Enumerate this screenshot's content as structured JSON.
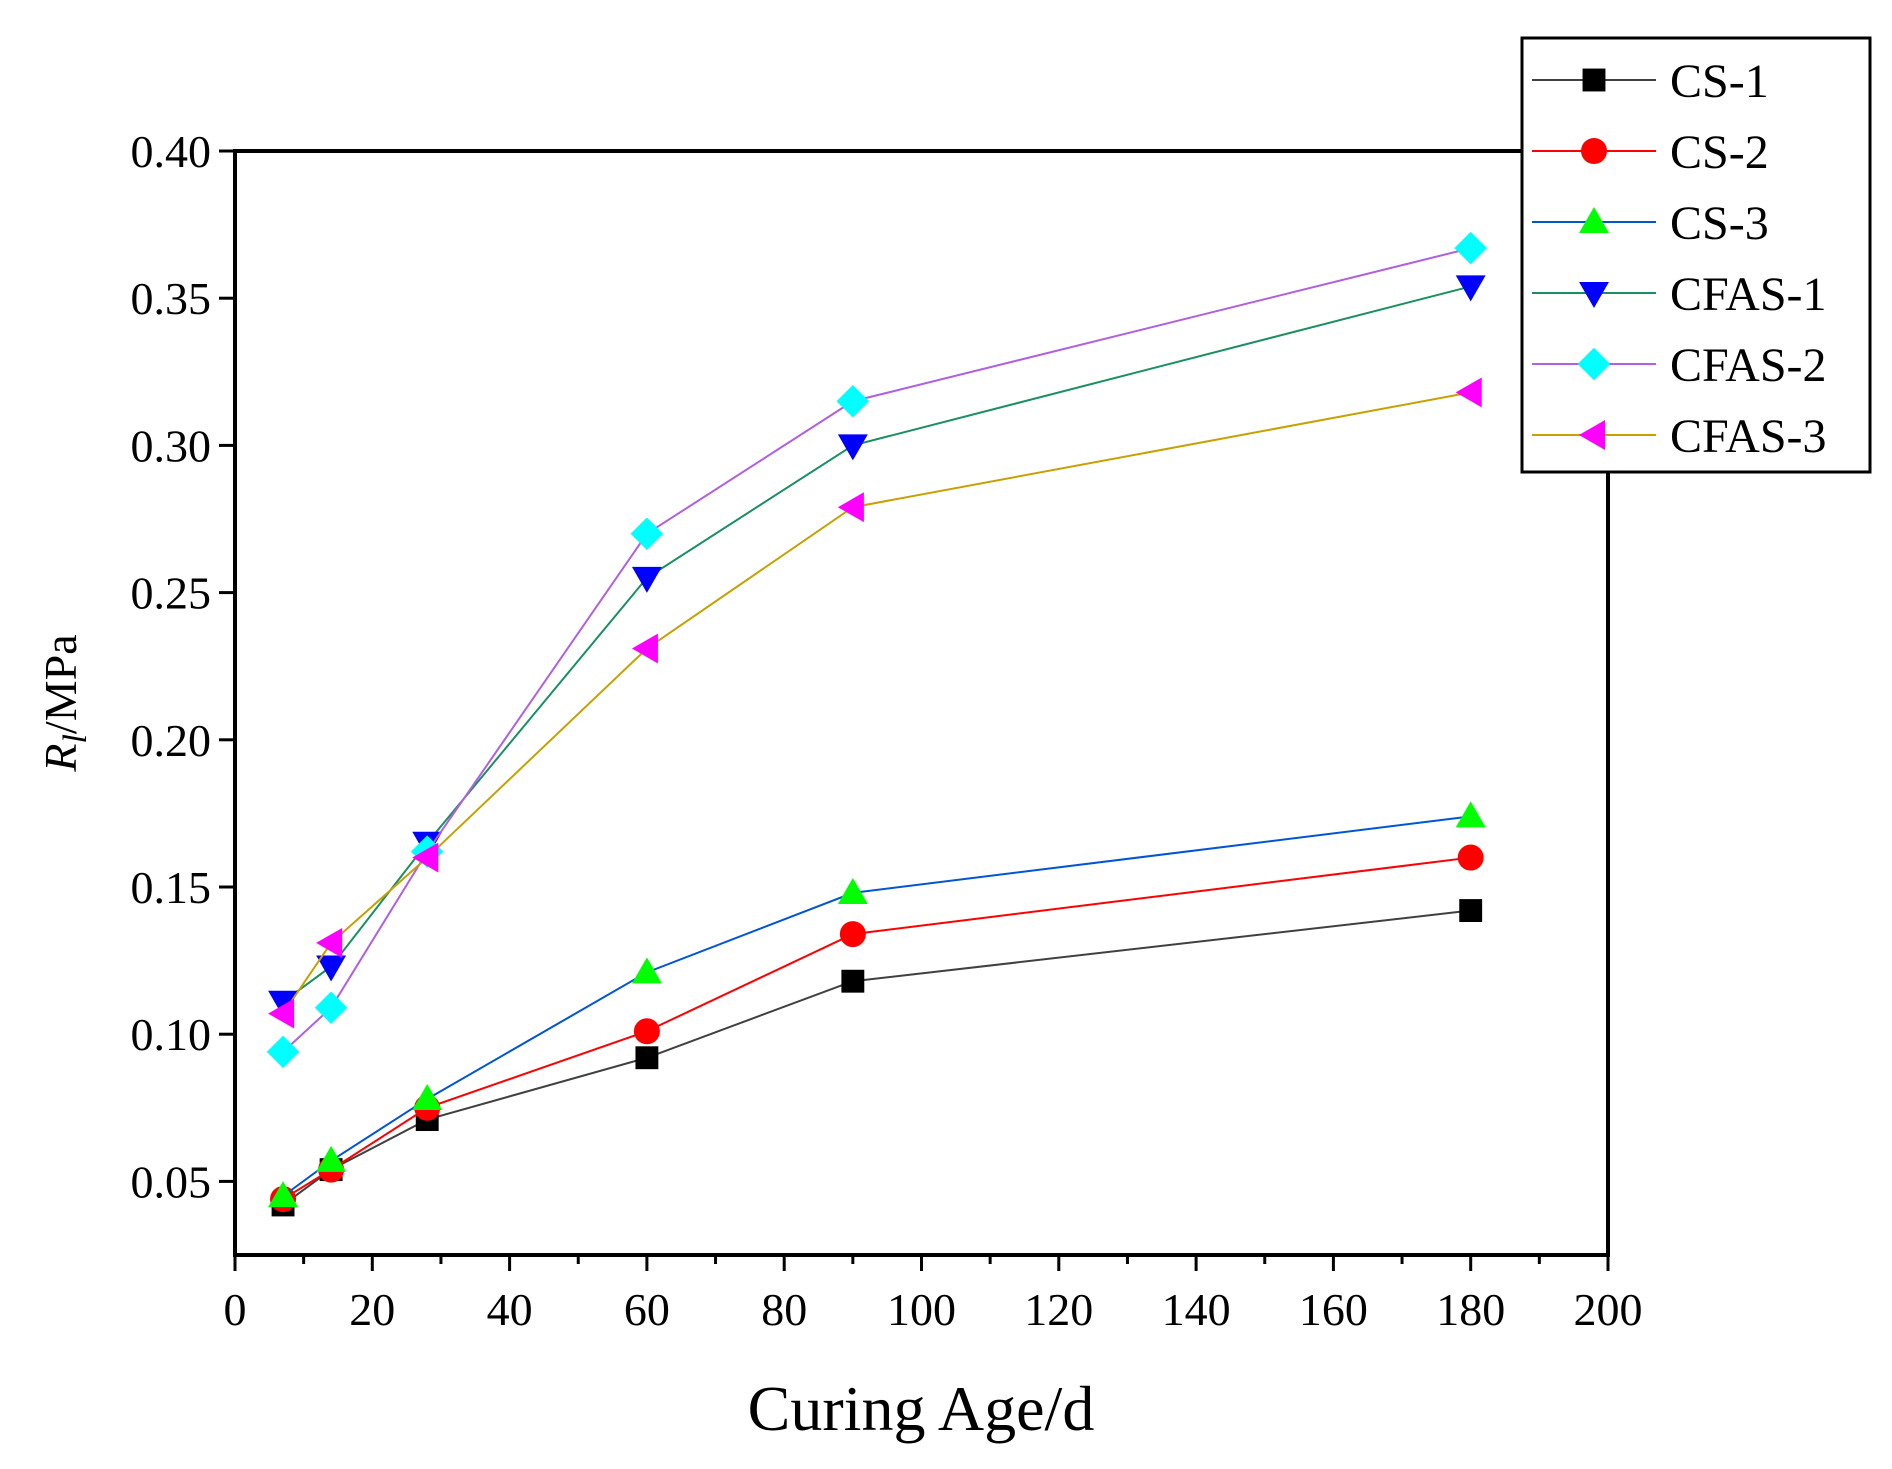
{
  "chart_data": {
    "type": "line",
    "title": "",
    "xlabel": "Curing Age/d",
    "ylabel": {
      "symbol": "R",
      "subscript": "l",
      "unit": "/MPa"
    },
    "xlim": [
      0,
      200
    ],
    "ylim": [
      0.025,
      0.4
    ],
    "xticks": [
      0,
      20,
      40,
      60,
      80,
      100,
      120,
      140,
      160,
      180,
      200
    ],
    "xtick_labels": [
      "0",
      "20",
      "40",
      "60",
      "80",
      "100",
      "120",
      "140",
      "160",
      "180",
      "200"
    ],
    "yticks": [
      0.05,
      0.1,
      0.15,
      0.2,
      0.25,
      0.3,
      0.35,
      0.4
    ],
    "ytick_labels": [
      "0.05",
      "0.10",
      "0.15",
      "0.20",
      "0.25",
      "0.30",
      "0.35",
      "0.40"
    ],
    "x": [
      7,
      14,
      28,
      60,
      90,
      180
    ],
    "legend_position": "top-right",
    "series": [
      {
        "name": "CS-1",
        "values": [
          0.042,
          0.054,
          0.071,
          0.092,
          0.118,
          0.142
        ],
        "line_color": "#404040",
        "marker": "square",
        "marker_color": "#000000"
      },
      {
        "name": "CS-2",
        "values": [
          0.044,
          0.054,
          0.075,
          0.101,
          0.134,
          0.16
        ],
        "line_color": "#ff0000",
        "marker": "circle",
        "marker_color": "#ff0000"
      },
      {
        "name": "CS-3",
        "values": [
          0.045,
          0.057,
          0.078,
          0.121,
          0.148,
          0.174
        ],
        "line_color": "#0055d4",
        "marker": "triangle-up",
        "marker_color": "#00ff00"
      },
      {
        "name": "CFAS-1",
        "values": [
          0.111,
          0.123,
          0.165,
          0.255,
          0.3,
          0.354
        ],
        "line_color": "#1a9060",
        "marker": "triangle-down",
        "marker_color": "#0000ff"
      },
      {
        "name": "CFAS-2",
        "values": [
          0.094,
          0.109,
          0.162,
          0.27,
          0.315,
          0.367
        ],
        "line_color": "#b060e0",
        "marker": "diamond",
        "marker_color": "#00ffff"
      },
      {
        "name": "CFAS-3",
        "values": [
          0.107,
          0.131,
          0.16,
          0.231,
          0.279,
          0.318
        ],
        "line_color": "#c8a000",
        "marker": "triangle-left",
        "marker_color": "#ff00ff"
      }
    ]
  }
}
